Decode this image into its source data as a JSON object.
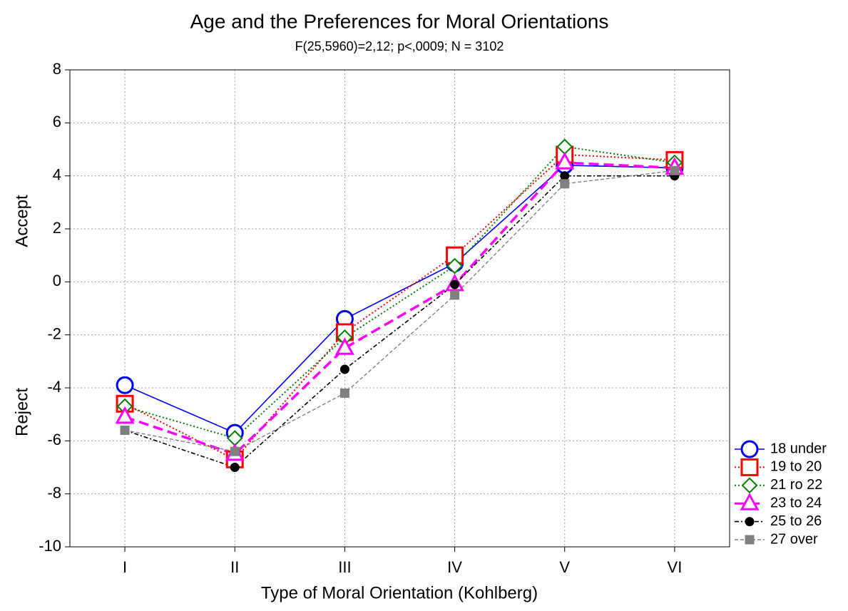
{
  "chart_data": {
    "type": "line",
    "title": "Age and the Preferences for Moral Orientations",
    "subtitle": "F(25,5960)=2,12; p<,0009; N = 3102",
    "xlabel": "Type of Moral Orientation (Kohlberg)",
    "ylabels": [
      "Accept",
      "Reject"
    ],
    "categories": [
      "I",
      "II",
      "III",
      "IV",
      "V",
      "VI"
    ],
    "ylim": [
      -10,
      8
    ],
    "yticks": [
      -10,
      -8,
      -6,
      -4,
      -2,
      0,
      2,
      4,
      6,
      8
    ],
    "grid": true,
    "legend": "bottom-right-outside",
    "series": [
      {
        "name": "18 under",
        "color": "#0000ff",
        "marker": "circle-open",
        "dash": "solid",
        "values": [
          -3.9,
          -5.7,
          -1.4,
          0.7,
          4.4,
          4.3
        ]
      },
      {
        "name": "19 to 20",
        "color": "#ff0000",
        "marker": "square-open",
        "dash": "dotted",
        "values": [
          -4.6,
          -6.7,
          -1.9,
          1.0,
          4.8,
          4.6
        ]
      },
      {
        "name": "21 ro 22",
        "color": "#008000",
        "marker": "diamond-open",
        "dash": "dotted",
        "values": [
          -4.7,
          -5.9,
          -2.1,
          0.6,
          5.1,
          4.5
        ]
      },
      {
        "name": "23 to 24",
        "color": "#ff00ff",
        "marker": "triangle-open",
        "dash": "dashed",
        "values": [
          -5.1,
          -6.5,
          -2.5,
          -0.1,
          4.5,
          4.3
        ]
      },
      {
        "name": "25 to 26",
        "color": "#000000",
        "marker": "circle-filled",
        "dash": "dashdot",
        "values": [
          -5.6,
          -7.0,
          -3.3,
          -0.1,
          4.0,
          4.0
        ]
      },
      {
        "name": "27 over",
        "color": "#808080",
        "marker": "square-filled",
        "dash": "dashed-thin",
        "values": [
          -5.6,
          -6.4,
          -4.2,
          -0.5,
          3.7,
          4.2
        ]
      }
    ]
  }
}
